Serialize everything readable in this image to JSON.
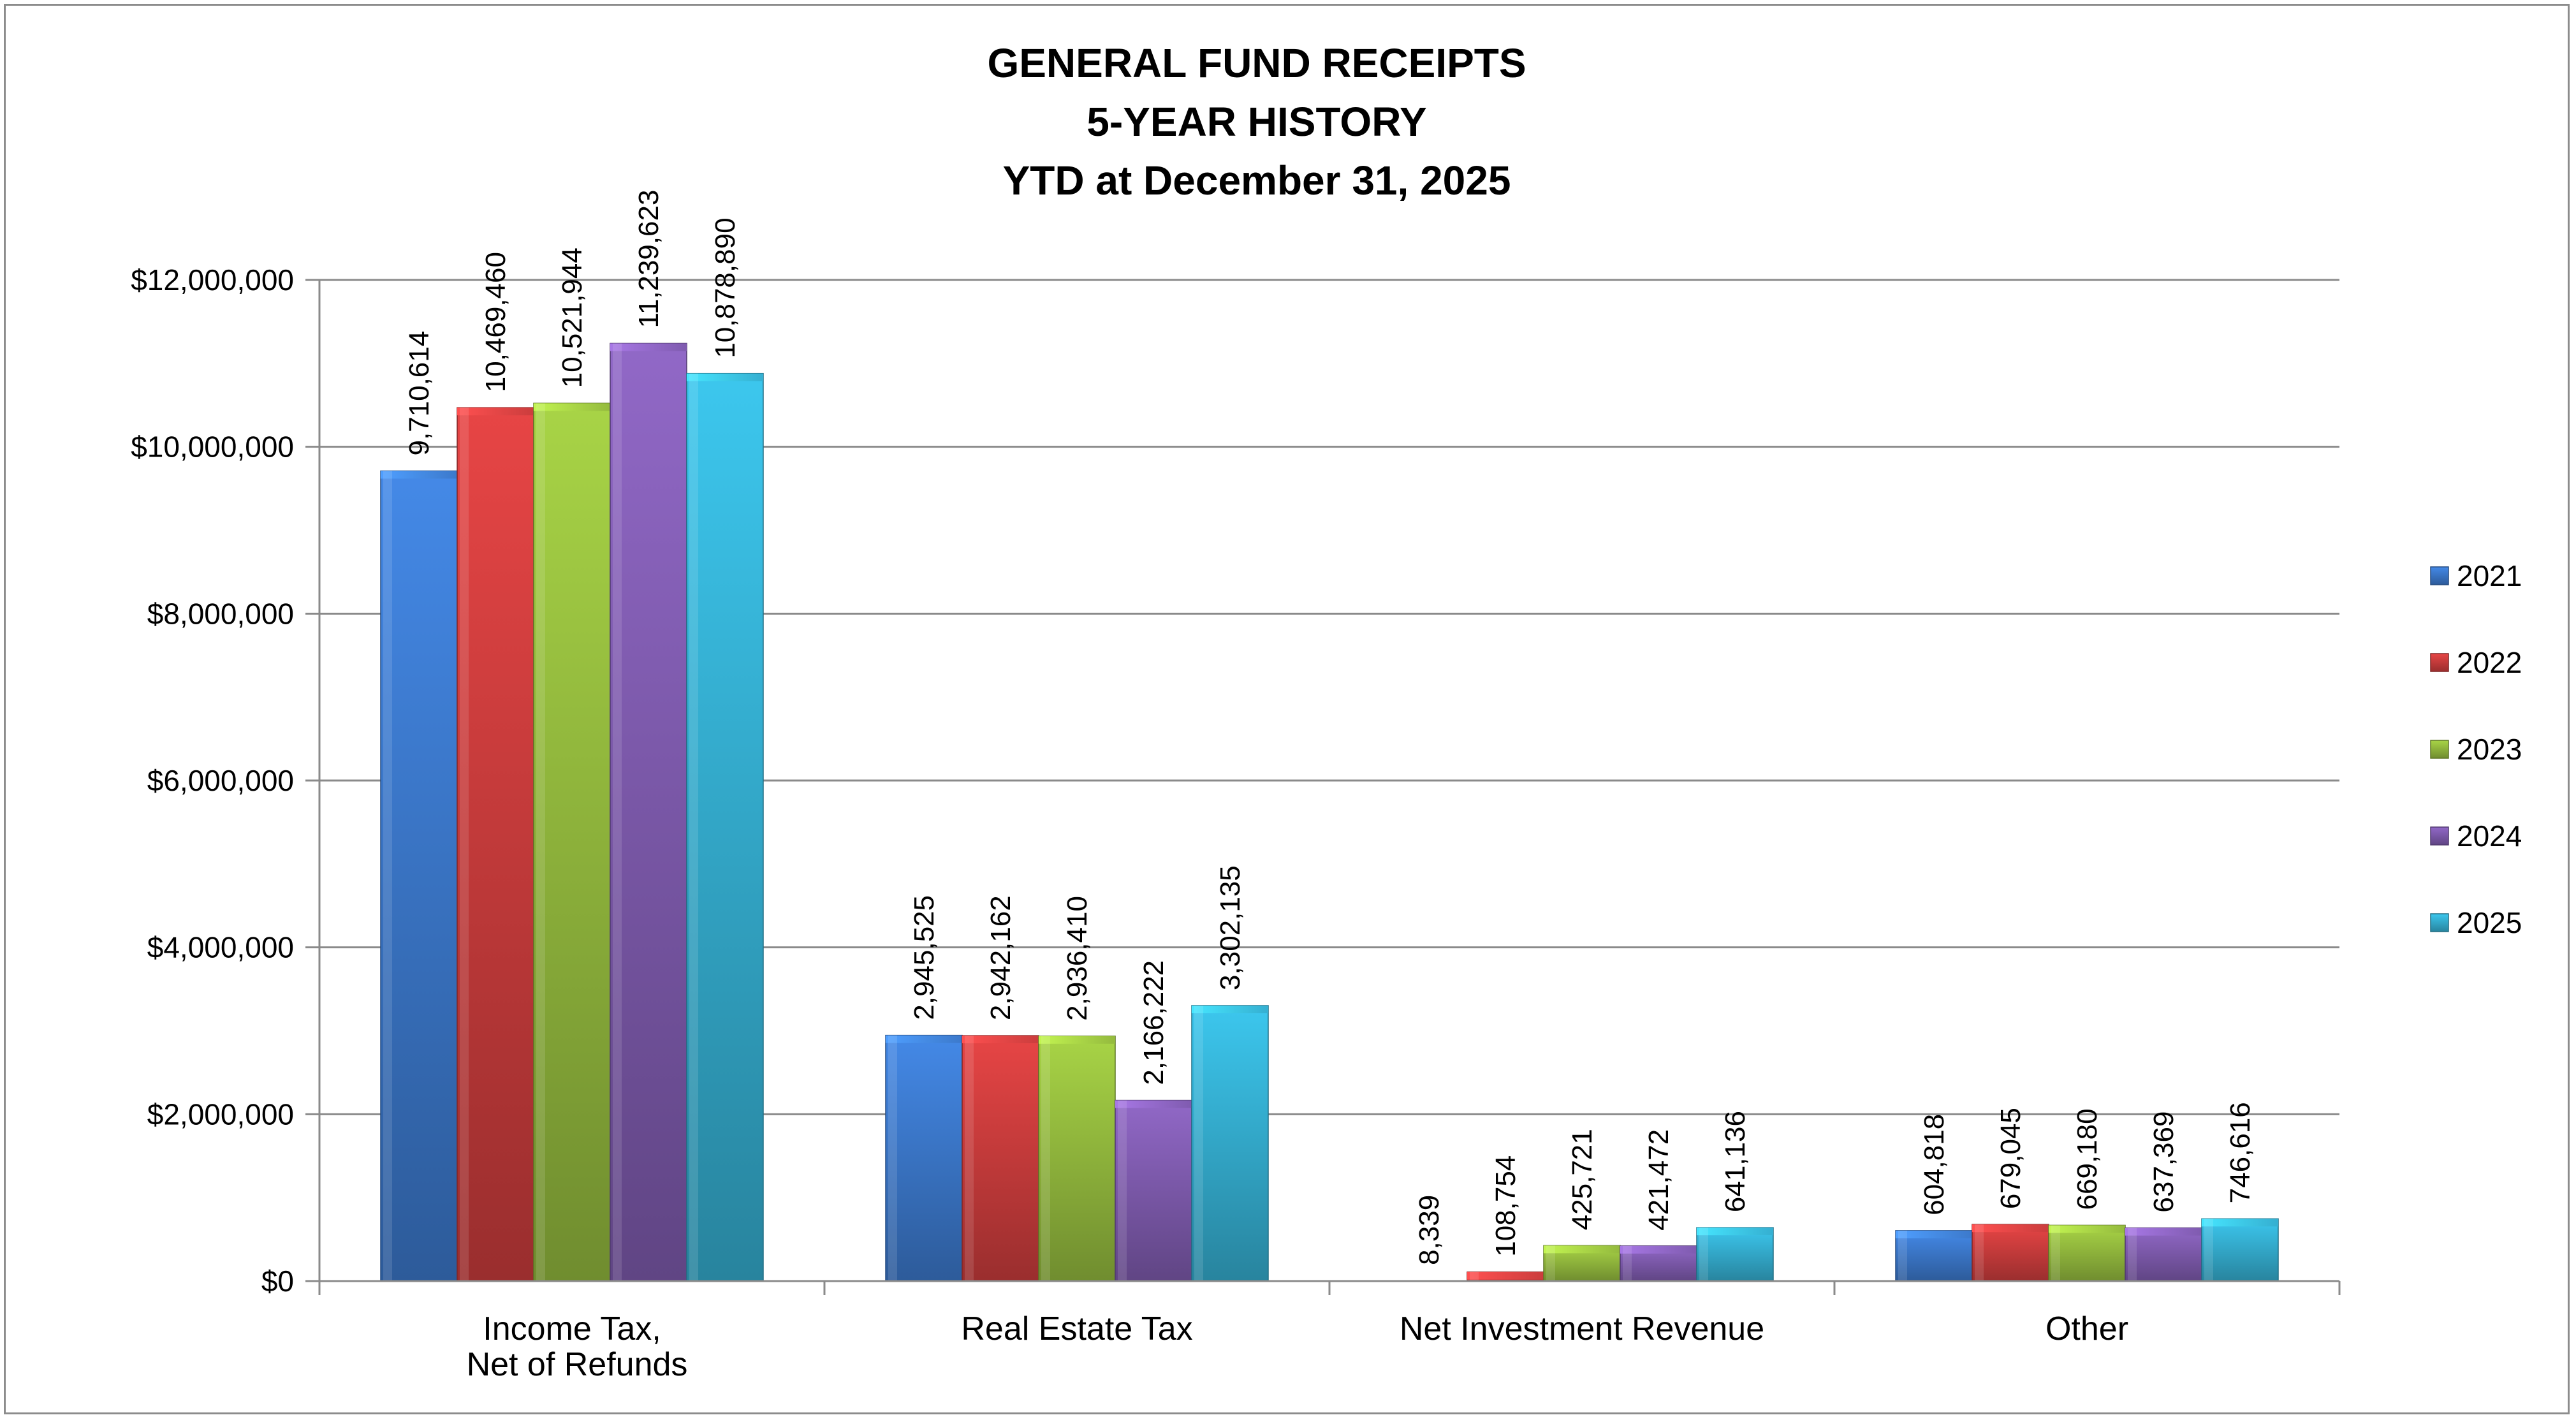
{
  "chart_data": {
    "type": "bar",
    "title": [
      "GENERAL FUND RECEIPTS",
      "5-YEAR HISTORY",
      "YTD at December 31, 2025"
    ],
    "xlabel": "",
    "ylabel": "",
    "categories": [
      [
        "Income Tax,",
        "Net of Refunds"
      ],
      [
        "Real Estate Tax"
      ],
      [
        "Net Investment Revenue"
      ],
      [
        "Other"
      ]
    ],
    "series": [
      {
        "name": "2021",
        "color": "#3f7fd6",
        "values": [
          9710614,
          2945525,
          0,
          604818
        ],
        "labels": [
          "9,710,614",
          "2,945,525",
          "",
          "604,818"
        ]
      },
      {
        "name": "2022",
        "color": "#d64040",
        "values": [
          10469460,
          2942162,
          108754,
          679045
        ],
        "labels": [
          "10,469,460",
          "2,942,162",
          "108,754",
          "679,045"
        ]
      },
      {
        "name": "2023",
        "color": "#9cc441",
        "values": [
          10521944,
          2936410,
          425721,
          669180
        ],
        "labels": [
          "10,521,944",
          "2,936,410",
          "425,721",
          "669,180"
        ]
      },
      {
        "name": "2024",
        "color": "#8660b8",
        "values": [
          11239623,
          2166222,
          421472,
          637369
        ],
        "labels": [
          "11,239,623",
          "2,166,222",
          "421,472",
          "637,369"
        ]
      },
      {
        "name": "2025",
        "color": "#38b8dc",
        "values": [
          10878890,
          3302135,
          641136,
          746616
        ],
        "labels": [
          "10,878,890",
          "3,302,135",
          "641,136",
          "746,616"
        ]
      }
    ],
    "extra_labels": [
      {
        "category_index": 2,
        "text": "8,339",
        "value": 8339
      }
    ],
    "ylim": [
      0,
      12000000
    ],
    "yticks": [
      0,
      2000000,
      4000000,
      6000000,
      8000000,
      10000000,
      12000000
    ],
    "ytick_labels": [
      "$0",
      "$2,000,000",
      "$4,000,000",
      "$6,000,000",
      "$8,000,000",
      "$10,000,000",
      "$12,000,000"
    ],
    "grid": true,
    "legend_position": "right"
  }
}
